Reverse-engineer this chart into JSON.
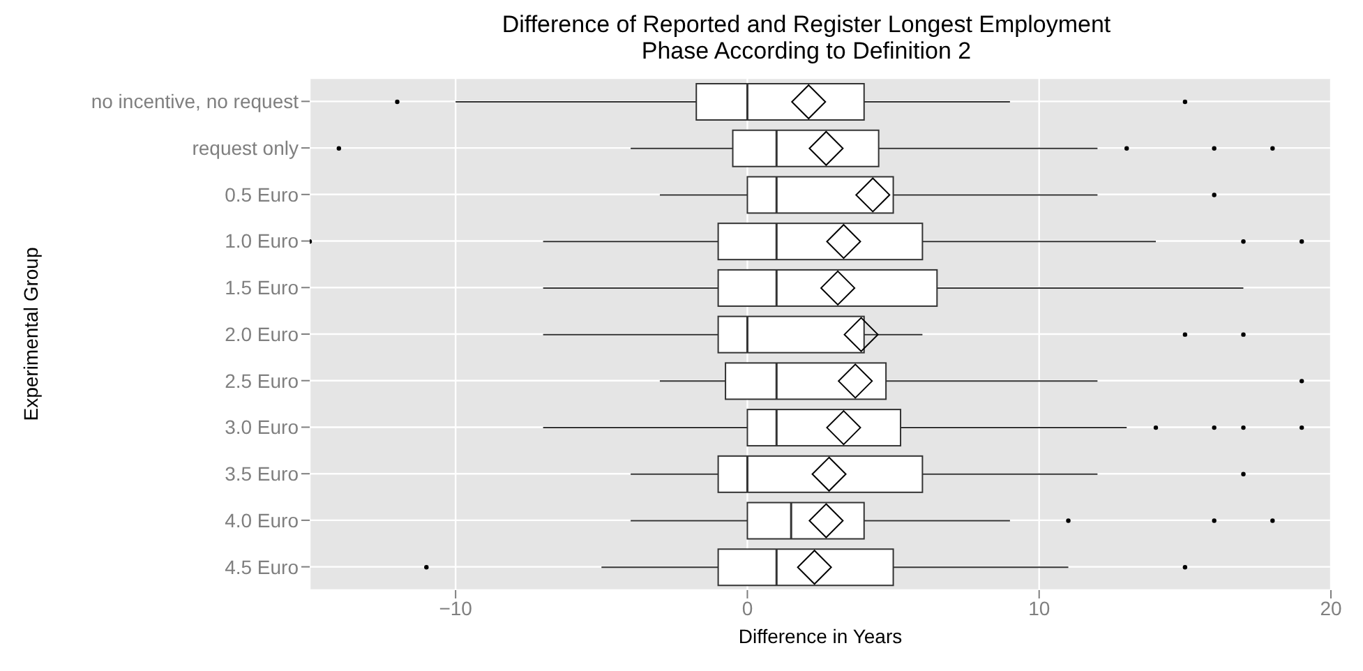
{
  "chart_data": {
    "type": "box",
    "orientation": "horizontal",
    "title": "Difference of Reported and Register Longest Employment Phase According to Definition 2",
    "xlabel": "Difference in Years",
    "ylabel": "Experimental Group",
    "color": "#ffffff",
    "categories": [
      "no incentive, no request",
      "request only",
      "0.5 Euro",
      "1.0 Euro",
      "1.5 Euro",
      "2.0 Euro",
      "2.5 Euro",
      "3.0 Euro",
      "3.5 Euro",
      "4.0 Euro",
      "4.5 Euro"
    ],
    "boxes": [
      {
        "low": -10,
        "q1": -1.75,
        "median": 0,
        "q3": 4,
        "high": 9,
        "mean": 2.1,
        "outliers": [
          -12,
          15
        ]
      },
      {
        "low": -4,
        "q1": -0.5,
        "median": 1,
        "q3": 4.5,
        "high": 12,
        "mean": 2.7,
        "outliers": [
          -14,
          13,
          16,
          18
        ]
      },
      {
        "low": -3,
        "q1": 0,
        "median": 1,
        "q3": 5,
        "high": 12,
        "mean": 4.3,
        "outliers": [
          16
        ]
      },
      {
        "low": -7,
        "q1": -1,
        "median": 1,
        "q3": 6,
        "high": 14,
        "mean": 3.3,
        "outliers": [
          -15,
          17,
          19
        ]
      },
      {
        "low": -7,
        "q1": -1,
        "median": 1,
        "q3": 6.5,
        "high": 17,
        "mean": 3.1
      },
      {
        "low": -7,
        "q1": -1,
        "median": 0,
        "q3": 4,
        "high": 6,
        "mean": 3.9,
        "outliers": [
          15,
          17
        ]
      },
      {
        "low": -3,
        "q1": -0.75,
        "median": 1,
        "q3": 4.75,
        "high": 12,
        "mean": 3.7,
        "outliers": [
          19
        ]
      },
      {
        "low": -7,
        "q1": 0,
        "median": 1,
        "q3": 5.25,
        "high": 13,
        "mean": 3.3,
        "outliers": [
          14,
          16,
          17,
          19
        ]
      },
      {
        "low": -4,
        "q1": -1,
        "median": 0,
        "q3": 6,
        "high": 12,
        "mean": 2.8,
        "outliers": [
          17
        ]
      },
      {
        "low": -4,
        "q1": 0,
        "median": 1.5,
        "q3": 4,
        "high": 9,
        "mean": 2.7,
        "outliers": [
          11,
          16,
          18
        ]
      },
      {
        "low": -5,
        "q1": -1,
        "median": 1,
        "q3": 5,
        "high": 11,
        "mean": 2.3,
        "outliers": [
          -11,
          15
        ]
      }
    ],
    "xlim": [
      -15,
      20
    ],
    "xticks": [
      -10,
      0,
      10,
      20
    ],
    "grid": true
  }
}
